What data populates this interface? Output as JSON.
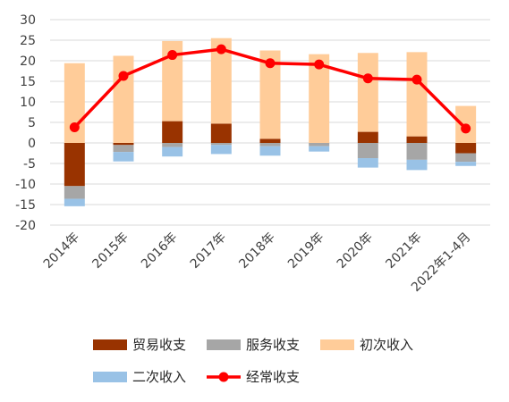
{
  "chart_data": {
    "type": "bar",
    "stacked": true,
    "categories": [
      "2014年",
      "2015年",
      "2016年",
      "2017年",
      "2018年",
      "2019年",
      "2020年",
      "2021年",
      "2022年1-4月"
    ],
    "ylim": [
      -20,
      30
    ],
    "yticks": [
      -20,
      -15,
      -10,
      -5,
      0,
      5,
      10,
      15,
      20,
      25,
      30
    ],
    "grid": true,
    "legend_position": "bottom",
    "series": [
      {
        "name": "贸易收支",
        "kind": "bar",
        "color": "#993300",
        "values": [
          -10.5,
          -0.5,
          5.3,
          4.7,
          1.0,
          0.0,
          2.7,
          1.6,
          -2.5
        ]
      },
      {
        "name": "服务收支",
        "kind": "bar",
        "color": "#a6a6a6",
        "values": [
          -3.1,
          -1.7,
          -1.0,
          -0.5,
          -0.8,
          -0.8,
          -3.7,
          -4.1,
          -2.1
        ]
      },
      {
        "name": "初次收入",
        "kind": "bar",
        "color": "#ffcc99",
        "values": [
          19.4,
          21.2,
          19.5,
          20.8,
          21.5,
          21.6,
          19.2,
          20.5,
          9.0
        ]
      },
      {
        "name": "二次收入",
        "kind": "bar",
        "color": "#99c2e6",
        "values": [
          -1.8,
          -2.3,
          -2.3,
          -2.2,
          -2.3,
          -1.3,
          -2.3,
          -2.5,
          -1.0
        ]
      },
      {
        "name": "经常收支",
        "kind": "line",
        "color": "#ff0000",
        "values": [
          3.8,
          16.3,
          21.4,
          22.8,
          19.4,
          19.1,
          15.7,
          15.4,
          3.5
        ]
      }
    ]
  }
}
